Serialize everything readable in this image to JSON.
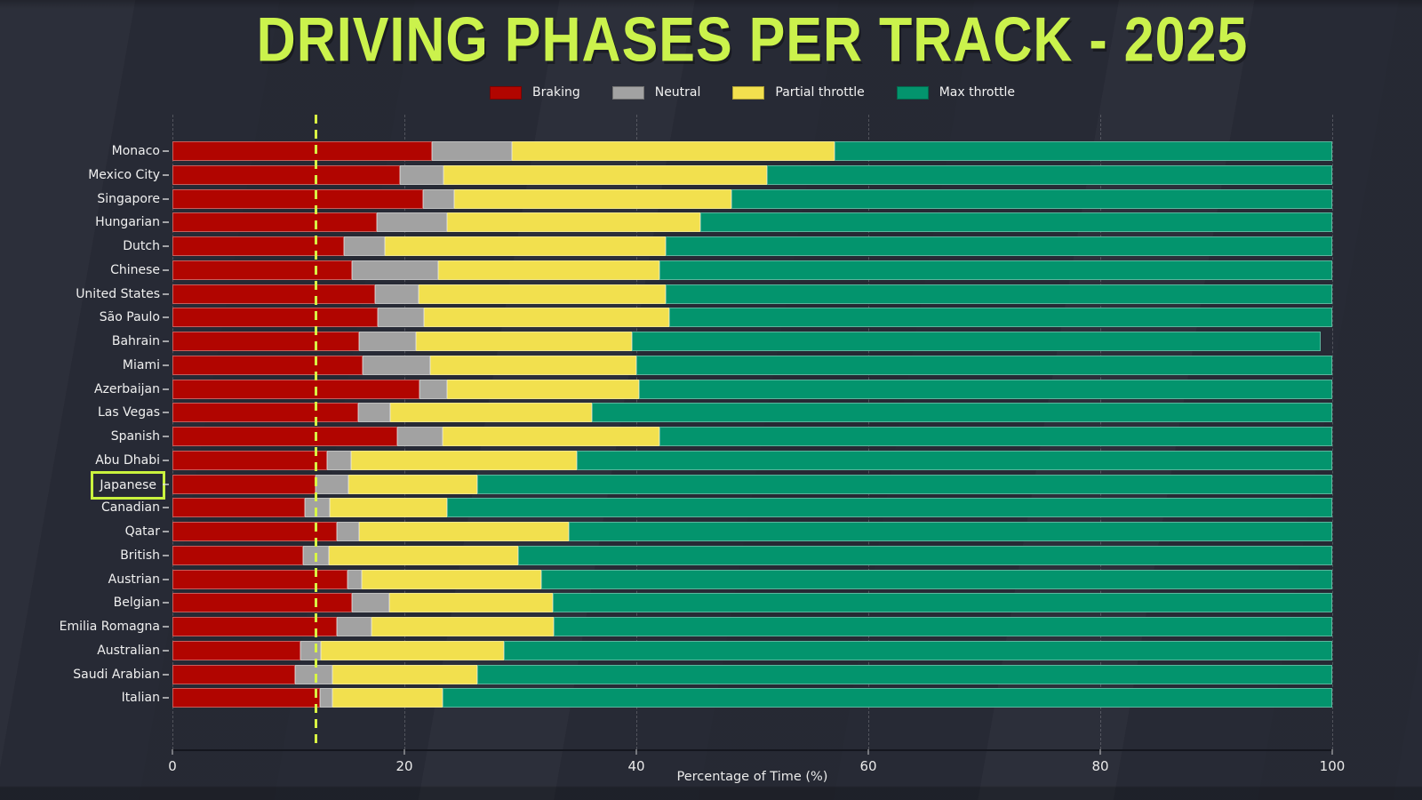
{
  "title": "DRIVING PHASES PER TRACK - 2025",
  "xlabel": "Percentage of Time (%)",
  "highlight": {
    "track": "Japanese"
  },
  "reference_line": {
    "x": 12.3,
    "color": "#d9f643",
    "style": "dashed"
  },
  "colors": {
    "background": "#272a35",
    "title": "#cbf24c",
    "braking": "#b10500",
    "neutral": "#a2a2a2",
    "partial_throttle": "#f2e04e",
    "max_throttle": "#03946d",
    "highlight_box": "#c9f23e",
    "text": "#f0f0f0"
  },
  "legend": [
    {
      "label": "Braking",
      "color": "#b10500"
    },
    {
      "label": "Neutral",
      "color": "#a2a2a2"
    },
    {
      "label": "Partial throttle",
      "color": "#f2e04e"
    },
    {
      "label": "Max throttle",
      "color": "#03946d"
    }
  ],
  "chart_data": {
    "type": "bar",
    "orientation": "horizontal",
    "stacked": true,
    "title": "DRIVING PHASES PER TRACK - 2025",
    "xlabel": "Percentage of Time (%)",
    "ylabel": "",
    "xlim": [
      0,
      100
    ],
    "x_ticks": [
      0,
      20,
      40,
      60,
      80,
      100
    ],
    "grid": "vertical-dashed",
    "legend_position": "top-center",
    "categories": [
      "Monaco",
      "Mexico City",
      "Singapore",
      "Hungarian",
      "Dutch",
      "Chinese",
      "United States",
      "São Paulo",
      "Bahrain",
      "Miami",
      "Azerbaijan",
      "Las Vegas",
      "Spanish",
      "Abu Dhabi",
      "Japanese",
      "Canadian",
      "Qatar",
      "British",
      "Austrian",
      "Belgian",
      "Emilia Romagna",
      "Australian",
      "Saudi Arabian",
      "Italian"
    ],
    "series": [
      {
        "name": "Braking",
        "color": "#b10500",
        "values": [
          22.4,
          19.6,
          21.6,
          17.6,
          14.8,
          15.5,
          17.5,
          17.7,
          16.1,
          16.4,
          21.3,
          16.0,
          19.4,
          13.3,
          12.3,
          11.4,
          14.2,
          11.3,
          15.1,
          15.5,
          14.2,
          11.0,
          10.6,
          12.7
        ]
      },
      {
        "name": "Neutral",
        "color": "#a2a2a2",
        "values": [
          6.9,
          3.8,
          2.7,
          6.1,
          3.5,
          7.4,
          3.7,
          4.0,
          4.9,
          5.8,
          2.4,
          2.8,
          3.9,
          2.1,
          2.9,
          2.2,
          1.9,
          2.2,
          1.2,
          3.2,
          3.0,
          1.8,
          3.2,
          1.1
        ]
      },
      {
        "name": "Partial throttle",
        "color": "#f2e04e",
        "values": [
          27.8,
          27.9,
          23.9,
          21.8,
          24.2,
          19.1,
          21.3,
          21.1,
          18.6,
          17.8,
          16.5,
          17.4,
          18.7,
          19.5,
          11.1,
          10.1,
          18.1,
          16.3,
          15.5,
          14.1,
          15.7,
          15.8,
          12.5,
          9.5
        ]
      },
      {
        "name": "Max throttle",
        "color": "#03946d",
        "values": [
          42.9,
          48.7,
          51.8,
          54.5,
          57.5,
          58.0,
          57.5,
          57.2,
          59.4,
          60.0,
          59.8,
          63.8,
          58.0,
          65.1,
          73.7,
          76.3,
          65.8,
          70.2,
          68.2,
          67.2,
          67.1,
          71.4,
          73.7,
          76.7
        ]
      }
    ]
  }
}
